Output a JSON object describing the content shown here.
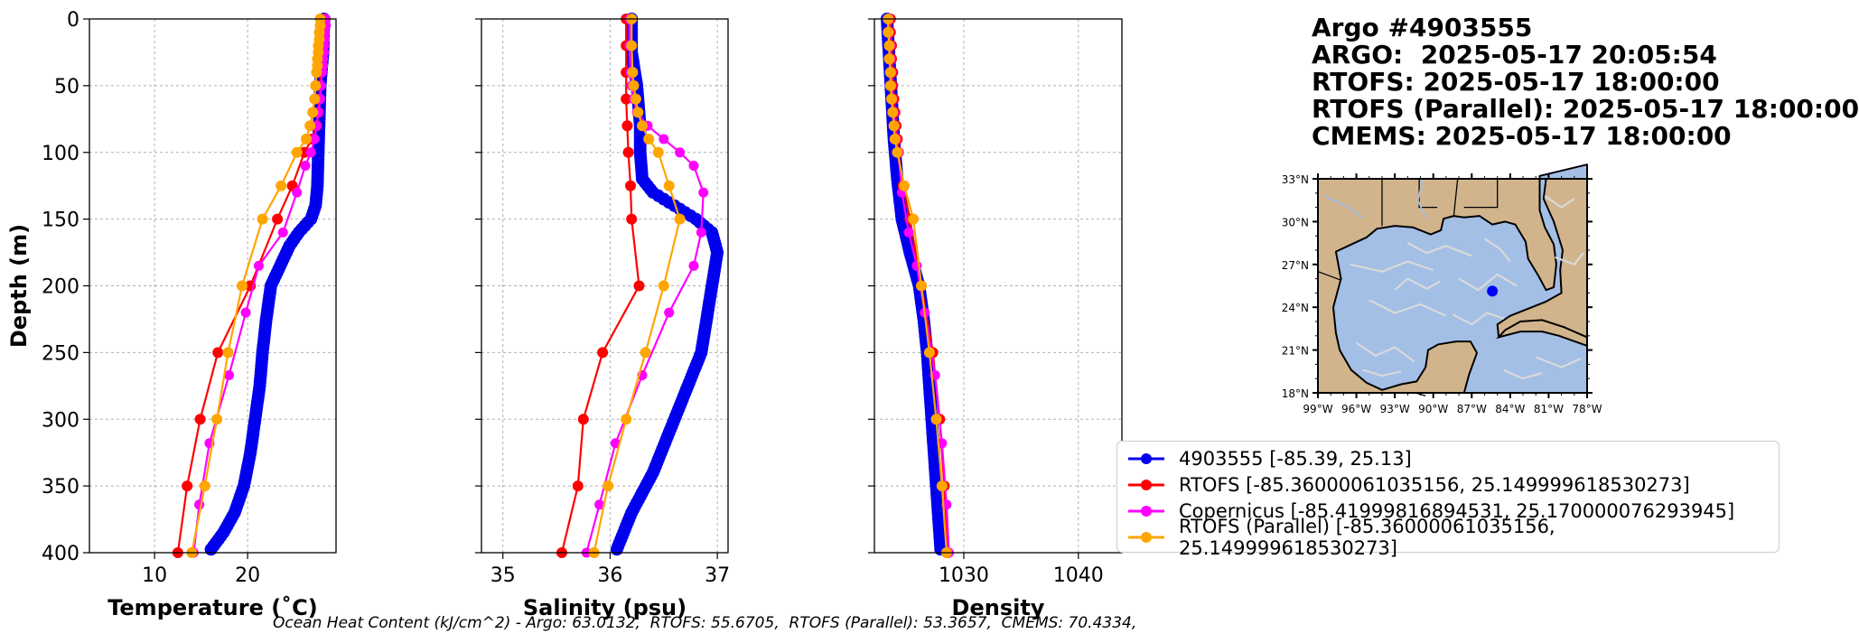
{
  "info": {
    "line1": "Argo #4903555",
    "line2": "ARGO:  2025-05-17 20:05:54",
    "line3": "RTOFS: 2025-05-17 18:00:00",
    "line4": "RTOFS (Parallel): 2025-05-17 18:00:00",
    "line5": "CMEMS: 2025-05-17 18:00:00"
  },
  "footer": "Ocean Heat Content (kJ/cm^2) - Argo: 63.0132,  RTOFS: 55.6705,  RTOFS (Parallel): 53.3657,  CMEMS: 70.4334,",
  "colors": {
    "argo": "#0000ee",
    "rtofs": "#ff0000",
    "copernicus": "#ff00ff",
    "parallel": "#ffa500",
    "land": "#d2b48c",
    "ocean": "#a3bfe6",
    "stream": "#d9d9d9"
  },
  "legend": [
    {
      "label": "4903555 [-85.39, 25.13]",
      "color": "#0000ee"
    },
    {
      "label": "RTOFS [-85.36000061035156, 25.149999618530273]",
      "color": "#ff0000"
    },
    {
      "label": "Copernicus [-85.41999816894531, 25.170000076293945]",
      "color": "#ff00ff"
    },
    {
      "label": "RTOFS (Parallel) [-85.36000061035156, 25.149999618530273]",
      "color": "#ffa500"
    }
  ],
  "map": {
    "lat_ticks": [
      "33°N",
      "30°N",
      "27°N",
      "24°N",
      "21°N",
      "18°N"
    ],
    "lon_ticks": [
      "99°W",
      "96°W",
      "93°W",
      "90°W",
      "87°W",
      "84°W",
      "81°W",
      "78°W"
    ],
    "extent": [
      -99,
      -78,
      18,
      33
    ],
    "float_position": [
      -85.39,
      25.13
    ]
  },
  "chart_data": [
    {
      "type": "line",
      "xlabel": "Temperature (˚C)",
      "ylabel": "Depth (m)",
      "xlim": [
        3,
        29.5
      ],
      "ylim": [
        400,
        0
      ],
      "x_ticks": [
        10,
        20
      ],
      "y_ticks": [
        0,
        50,
        100,
        150,
        200,
        250,
        300,
        350,
        400
      ],
      "grid": true,
      "series": [
        {
          "name": "4903555 [-85.39, 25.13]",
          "color": "#0000ee",
          "points": [
            [
              28.2,
              0
            ],
            [
              28.1,
              25
            ],
            [
              27.8,
              50
            ],
            [
              27.7,
              75
            ],
            [
              27.6,
              100
            ],
            [
              27.5,
              125
            ],
            [
              27.3,
              140
            ],
            [
              26.8,
              150
            ],
            [
              25.5,
              160
            ],
            [
              24.5,
              170
            ],
            [
              23.5,
              185
            ],
            [
              22.5,
              200
            ],
            [
              22.0,
              225
            ],
            [
              21.6,
              250
            ],
            [
              21.3,
              275
            ],
            [
              20.8,
              300
            ],
            [
              20.3,
              325
            ],
            [
              19.6,
              350
            ],
            [
              18.6,
              370
            ],
            [
              17.4,
              385
            ],
            [
              15.8,
              400
            ]
          ]
        },
        {
          "name": "RTOFS [-85.36000061035156, 25.149999618530273]",
          "color": "#ff0000",
          "points": [
            [
              28.3,
              0
            ],
            [
              28.2,
              10
            ],
            [
              28.1,
              20
            ],
            [
              28.0,
              30
            ],
            [
              27.9,
              40
            ],
            [
              27.8,
              50
            ],
            [
              27.7,
              60
            ],
            [
              27.6,
              70
            ],
            [
              27.4,
              80
            ],
            [
              26.9,
              90
            ],
            [
              26.1,
              100
            ],
            [
              24.8,
              125
            ],
            [
              23.2,
              150
            ],
            [
              20.3,
              200
            ],
            [
              16.8,
              250
            ],
            [
              14.9,
              300
            ],
            [
              13.5,
              350
            ],
            [
              12.5,
              400
            ]
          ]
        },
        {
          "name": "Copernicus [-85.41999816894531, 25.170000076293945]",
          "color": "#ff00ff",
          "points": [
            [
              28.4,
              0
            ],
            [
              28.4,
              5
            ],
            [
              28.3,
              10
            ],
            [
              28.3,
              15
            ],
            [
              28.2,
              20
            ],
            [
              28.2,
              25
            ],
            [
              28.1,
              30
            ],
            [
              28.1,
              35
            ],
            [
              28.0,
              40
            ],
            [
              27.9,
              50
            ],
            [
              27.8,
              60
            ],
            [
              27.6,
              70
            ],
            [
              27.4,
              80
            ],
            [
              27.2,
              90
            ],
            [
              26.8,
              100
            ],
            [
              26.2,
              110
            ],
            [
              25.3,
              130
            ],
            [
              23.8,
              160
            ],
            [
              21.2,
              185
            ],
            [
              19.8,
              220
            ],
            [
              18.0,
              267
            ],
            [
              15.9,
              318
            ],
            [
              14.8,
              364
            ],
            [
              14.2,
              400
            ]
          ]
        },
        {
          "name": "RTOFS (Parallel) [-85.36000061035156, 25.149999618530273]",
          "color": "#ffa500",
          "points": [
            [
              27.8,
              0
            ],
            [
              27.8,
              5
            ],
            [
              27.7,
              10
            ],
            [
              27.7,
              15
            ],
            [
              27.6,
              20
            ],
            [
              27.6,
              25
            ],
            [
              27.5,
              30
            ],
            [
              27.5,
              35
            ],
            [
              27.4,
              40
            ],
            [
              27.3,
              50
            ],
            [
              27.2,
              60
            ],
            [
              27.0,
              70
            ],
            [
              26.7,
              80
            ],
            [
              26.3,
              90
            ],
            [
              25.3,
              100
            ],
            [
              23.6,
              125
            ],
            [
              21.6,
              150
            ],
            [
              19.4,
              200
            ],
            [
              17.9,
              250
            ],
            [
              16.7,
              300
            ],
            [
              15.4,
              350
            ],
            [
              14.0,
              400
            ]
          ]
        }
      ]
    },
    {
      "type": "line",
      "xlabel": "Salinity (psu)",
      "xlim": [
        34.8,
        37.1
      ],
      "ylim": [
        400,
        0
      ],
      "x_ticks": [
        35,
        36,
        37
      ],
      "y_ticks": [
        0,
        50,
        100,
        150,
        200,
        250,
        300,
        350,
        400
      ],
      "grid": true,
      "series": [
        {
          "name": "4903555 [-85.39, 25.13]",
          "color": "#0000ee",
          "points": [
            [
              36.2,
              0
            ],
            [
              36.2,
              25
            ],
            [
              36.25,
              50
            ],
            [
              36.28,
              80
            ],
            [
              36.28,
              100
            ],
            [
              36.3,
              120
            ],
            [
              36.4,
              130
            ],
            [
              36.6,
              140
            ],
            [
              36.8,
              150
            ],
            [
              36.95,
              160
            ],
            [
              37.0,
              175
            ],
            [
              36.95,
              200
            ],
            [
              36.85,
              250
            ],
            [
              36.6,
              300
            ],
            [
              36.4,
              340
            ],
            [
              36.2,
              370
            ],
            [
              36.05,
              400
            ]
          ]
        },
        {
          "name": "RTOFS [-85.36000061035156, 25.149999618530273]",
          "color": "#ff0000",
          "points": [
            [
              36.15,
              0
            ],
            [
              36.15,
              20
            ],
            [
              36.15,
              40
            ],
            [
              36.15,
              60
            ],
            [
              36.16,
              80
            ],
            [
              36.17,
              100
            ],
            [
              36.19,
              125
            ],
            [
              36.2,
              150
            ],
            [
              36.27,
              200
            ],
            [
              35.93,
              250
            ],
            [
              35.75,
              300
            ],
            [
              35.7,
              350
            ],
            [
              35.55,
              400
            ]
          ]
        },
        {
          "name": "Copernicus [-85.41999816894531, 25.170000076293945]",
          "color": "#ff00ff",
          "points": [
            [
              36.18,
              0
            ],
            [
              36.18,
              20
            ],
            [
              36.19,
              40
            ],
            [
              36.2,
              50
            ],
            [
              36.22,
              60
            ],
            [
              36.25,
              70
            ],
            [
              36.35,
              80
            ],
            [
              36.5,
              90
            ],
            [
              36.65,
              100
            ],
            [
              36.78,
              110
            ],
            [
              36.87,
              130
            ],
            [
              36.85,
              160
            ],
            [
              36.78,
              185
            ],
            [
              36.55,
              220
            ],
            [
              36.3,
              267
            ],
            [
              36.05,
              318
            ],
            [
              35.9,
              364
            ],
            [
              35.78,
              400
            ]
          ]
        },
        {
          "name": "RTOFS (Parallel) [-85.36000061035156, 25.149999618530273]",
          "color": "#ffa500",
          "points": [
            [
              36.2,
              0
            ],
            [
              36.2,
              20
            ],
            [
              36.21,
              40
            ],
            [
              36.22,
              50
            ],
            [
              36.24,
              60
            ],
            [
              36.26,
              70
            ],
            [
              36.3,
              80
            ],
            [
              36.36,
              90
            ],
            [
              36.45,
              100
            ],
            [
              36.55,
              125
            ],
            [
              36.65,
              150
            ],
            [
              36.5,
              200
            ],
            [
              36.33,
              250
            ],
            [
              36.15,
              300
            ],
            [
              35.98,
              350
            ],
            [
              35.85,
              400
            ]
          ]
        }
      ]
    },
    {
      "type": "line",
      "xlabel": "Density",
      "xlim": [
        1022.2,
        1043.8
      ],
      "ylim": [
        400,
        0
      ],
      "x_ticks": [
        1030,
        1040
      ],
      "y_ticks": [
        0,
        50,
        100,
        150,
        200,
        250,
        300,
        350,
        400
      ],
      "grid": true,
      "series": [
        {
          "name": "4903555 [-85.39, 25.13]",
          "color": "#0000ee",
          "points": [
            [
              1023.3,
              0
            ],
            [
              1023.5,
              30
            ],
            [
              1023.7,
              60
            ],
            [
              1023.9,
              90
            ],
            [
              1024.2,
              120
            ],
            [
              1024.6,
              150
            ],
            [
              1025.3,
              175
            ],
            [
              1026.1,
              200
            ],
            [
              1026.5,
              225
            ],
            [
              1026.8,
              250
            ],
            [
              1027.0,
              275
            ],
            [
              1027.2,
              300
            ],
            [
              1027.4,
              325
            ],
            [
              1027.6,
              350
            ],
            [
              1027.8,
              375
            ],
            [
              1028.0,
              400
            ]
          ]
        },
        {
          "name": "RTOFS [-85.36000061035156, 25.149999618530273]",
          "color": "#ff0000",
          "points": [
            [
              1023.6,
              0
            ],
            [
              1023.6,
              10
            ],
            [
              1023.7,
              20
            ],
            [
              1023.7,
              30
            ],
            [
              1023.8,
              40
            ],
            [
              1023.8,
              50
            ],
            [
              1023.9,
              60
            ],
            [
              1024.0,
              70
            ],
            [
              1024.1,
              80
            ],
            [
              1024.2,
              90
            ],
            [
              1024.3,
              100
            ],
            [
              1024.7,
              125
            ],
            [
              1025.3,
              150
            ],
            [
              1026.3,
              200
            ],
            [
              1027.3,
              250
            ],
            [
              1027.9,
              300
            ],
            [
              1028.3,
              350
            ],
            [
              1028.6,
              400
            ]
          ]
        },
        {
          "name": "Copernicus [-85.41999816894531, 25.170000076293945]",
          "color": "#ff00ff",
          "points": [
            [
              1023.5,
              0
            ],
            [
              1023.5,
              10
            ],
            [
              1023.6,
              20
            ],
            [
              1023.6,
              30
            ],
            [
              1023.7,
              40
            ],
            [
              1023.7,
              50
            ],
            [
              1023.8,
              60
            ],
            [
              1023.9,
              70
            ],
            [
              1024.0,
              80
            ],
            [
              1024.1,
              90
            ],
            [
              1024.3,
              100
            ],
            [
              1024.6,
              130
            ],
            [
              1025.2,
              160
            ],
            [
              1025.9,
              185
            ],
            [
              1026.6,
              220
            ],
            [
              1027.5,
              267
            ],
            [
              1028.1,
              318
            ],
            [
              1028.5,
              364
            ],
            [
              1028.7,
              400
            ]
          ]
        },
        {
          "name": "RTOFS (Parallel) [-85.36000061035156, 25.149999618530273]",
          "color": "#ffa500",
          "points": [
            [
              1023.4,
              0
            ],
            [
              1023.4,
              10
            ],
            [
              1023.5,
              20
            ],
            [
              1023.5,
              30
            ],
            [
              1023.6,
              40
            ],
            [
              1023.6,
              50
            ],
            [
              1023.7,
              60
            ],
            [
              1023.8,
              70
            ],
            [
              1023.9,
              80
            ],
            [
              1024.0,
              90
            ],
            [
              1024.2,
              100
            ],
            [
              1024.8,
              125
            ],
            [
              1025.6,
              150
            ],
            [
              1026.3,
              200
            ],
            [
              1027.0,
              250
            ],
            [
              1027.6,
              300
            ],
            [
              1028.1,
              350
            ],
            [
              1028.5,
              400
            ]
          ]
        }
      ]
    }
  ]
}
